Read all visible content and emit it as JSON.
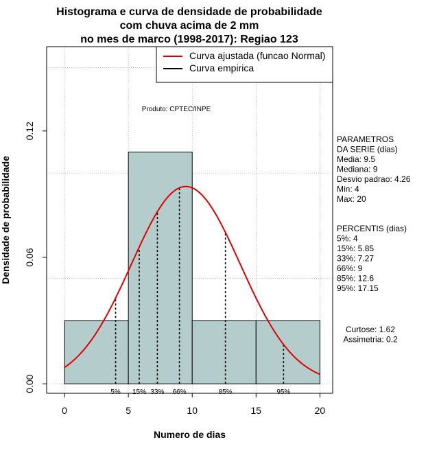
{
  "chart_data": {
    "type": "bar",
    "title_lines": [
      "Histograma e curva de densidade de probabilidade",
      "com chuva acima de 2 mm",
      "no mes de marco (1998-2017): Regiao 123"
    ],
    "xlabel": "Numero de dias",
    "ylabel": "Densidade de probabilidade",
    "xlim": [
      -1.4,
      21.0
    ],
    "ylim": [
      -0.0045,
      0.16
    ],
    "x_ticks": [
      0,
      5,
      10,
      15,
      20
    ],
    "x_tick_labels": [
      "0",
      "5",
      "10",
      "15",
      "20"
    ],
    "y_ticks": [
      0.0,
      0.06,
      0.12
    ],
    "y_tick_labels": [
      "0.00",
      "0.06",
      "0.12"
    ],
    "grid": true,
    "grid_x": [
      0,
      5,
      10,
      15,
      20
    ],
    "grid_y": [
      0.0,
      0.05,
      0.1,
      0.15
    ],
    "bins": [
      {
        "from": 0,
        "to": 5,
        "density": 0.03
      },
      {
        "from": 5,
        "to": 10,
        "density": 0.11
      },
      {
        "from": 10,
        "to": 15,
        "density": 0.03
      },
      {
        "from": 15,
        "to": 20,
        "density": 0.03
      }
    ],
    "bar_fill": "#b4cccb",
    "normal_curve": {
      "mean": 9.5,
      "sd": 4.26,
      "x_from": 0,
      "x_to": 20,
      "color": "#e00000"
    },
    "percentile_markers": [
      {
        "label": "5%",
        "x": 4
      },
      {
        "label": "15%",
        "x": 5.85
      },
      {
        "label": "33%",
        "x": 7.27
      },
      {
        "label": "66%",
        "x": 9
      },
      {
        "label": "85%",
        "x": 12.6
      },
      {
        "label": "95%",
        "x": 17.15
      }
    ],
    "legend": {
      "position": "top-right",
      "entries": [
        {
          "label": "Curva ajustada (funcao Normal)",
          "color": "#e00000"
        },
        {
          "label": "Curva empirica",
          "color": "#000000"
        }
      ]
    },
    "annotation": "Produto: CPTEC/INPE"
  },
  "side_panel": {
    "params_lines": [
      "PARAMETROS",
      "DA SERIE (dias)",
      "  Media: 9.5",
      "  Mediana: 9",
      "  Desvio padrao: 4.26",
      "  Min: 4",
      "  Max: 20"
    ],
    "percentis_lines": [
      "PERCENTIS (dias)",
      "  5%: 4",
      "  15%: 5.85",
      "  33%: 7.27",
      "  66%: 9",
      "  85%: 12.6",
      "  95%: 17.15"
    ],
    "stats_lines": [
      "Curtose: 1.62",
      "Assimetria: 0.2"
    ]
  }
}
